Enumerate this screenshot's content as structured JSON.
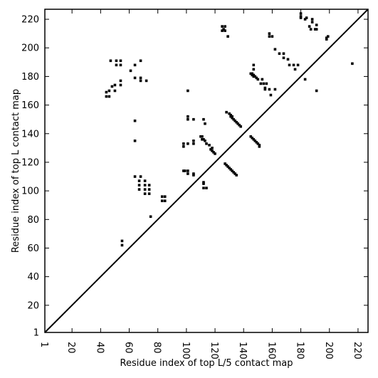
{
  "chart_data": {
    "type": "scatter",
    "title": "",
    "xlabel": "Residue index of top L/5 contact map",
    "ylabel": "Residue index of top L contact map",
    "xlim": [
      1,
      227
    ],
    "ylim": [
      1,
      227
    ],
    "x_ticks": [
      1,
      20,
      40,
      60,
      80,
      100,
      120,
      140,
      160,
      180,
      200,
      220
    ],
    "y_ticks": [
      1,
      20,
      40,
      60,
      80,
      100,
      120,
      140,
      160,
      180,
      200,
      220
    ],
    "x_tick_labels": [
      "1",
      "20",
      "40",
      "60",
      "80",
      "100",
      "120",
      "140",
      "160",
      "180",
      "200",
      "220"
    ],
    "y_tick_labels": [
      "1",
      "20",
      "40",
      "60",
      "80",
      "100",
      "120",
      "140",
      "160",
      "180",
      "200",
      "220"
    ],
    "grid": false,
    "diagonal": true,
    "series": [
      {
        "marker": "square",
        "color": "#000000",
        "points": [
          [
            44,
            166
          ],
          [
            44,
            169
          ],
          [
            46,
            166
          ],
          [
            46,
            170
          ],
          [
            47,
            191
          ],
          [
            48,
            173
          ],
          [
            50,
            170
          ],
          [
            50,
            174
          ],
          [
            51,
            188
          ],
          [
            51,
            191
          ],
          [
            54,
            174
          ],
          [
            54,
            177
          ],
          [
            54,
            188
          ],
          [
            54,
            191
          ],
          [
            55,
            62
          ],
          [
            55,
            65
          ],
          [
            61,
            184
          ],
          [
            64,
            110
          ],
          [
            64,
            135
          ],
          [
            64,
            149
          ],
          [
            64,
            179
          ],
          [
            64,
            188
          ],
          [
            67,
            101
          ],
          [
            67,
            104
          ],
          [
            67,
            107
          ],
          [
            68,
            110
          ],
          [
            68,
            177
          ],
          [
            68,
            179
          ],
          [
            68,
            191
          ],
          [
            71,
            98
          ],
          [
            71,
            101
          ],
          [
            71,
            104
          ],
          [
            71,
            107
          ],
          [
            72,
            177
          ],
          [
            74,
            98
          ],
          [
            74,
            101
          ],
          [
            74,
            104
          ],
          [
            75,
            82
          ],
          [
            83,
            93
          ],
          [
            83,
            96
          ],
          [
            85,
            93
          ],
          [
            85,
            96
          ],
          [
            98,
            114
          ],
          [
            98,
            131
          ],
          [
            98,
            133
          ],
          [
            99,
            114
          ],
          [
            101,
            112
          ],
          [
            101,
            114
          ],
          [
            101,
            133
          ],
          [
            101,
            150
          ],
          [
            101,
            152
          ],
          [
            101,
            170
          ],
          [
            105,
            111
          ],
          [
            105,
            112
          ],
          [
            105,
            133
          ],
          [
            105,
            135
          ],
          [
            105,
            150
          ],
          [
            110,
            138
          ],
          [
            111,
            136
          ],
          [
            111,
            138
          ],
          [
            112,
            102
          ],
          [
            112,
            105
          ],
          [
            112,
            106
          ],
          [
            112,
            136
          ],
          [
            112,
            150
          ],
          [
            113,
            135
          ],
          [
            113,
            147
          ],
          [
            114,
            102
          ],
          [
            114,
            133
          ],
          [
            116,
            132
          ],
          [
            117,
            129
          ],
          [
            118,
            128
          ],
          [
            118,
            130
          ],
          [
            119,
            127
          ],
          [
            120,
            126
          ],
          [
            125,
            212
          ],
          [
            125,
            215
          ],
          [
            126,
            213
          ],
          [
            127,
            119
          ],
          [
            127,
            212
          ],
          [
            127,
            215
          ],
          [
            128,
            118
          ],
          [
            128,
            155
          ],
          [
            129,
            117
          ],
          [
            129,
            208
          ],
          [
            130,
            116
          ],
          [
            130,
            154
          ],
          [
            131,
            115
          ],
          [
            131,
            152
          ],
          [
            131,
            153
          ],
          [
            132,
            151
          ],
          [
            132,
            152
          ],
          [
            132,
            114
          ],
          [
            133,
            113
          ],
          [
            133,
            150
          ],
          [
            134,
            112
          ],
          [
            134,
            149
          ],
          [
            135,
            111
          ],
          [
            135,
            148
          ],
          [
            136,
            147
          ],
          [
            137,
            146
          ],
          [
            138,
            145
          ],
          [
            145,
            138
          ],
          [
            145,
            182
          ],
          [
            146,
            137
          ],
          [
            146,
            181
          ],
          [
            146,
            182
          ],
          [
            147,
            136
          ],
          [
            147,
            180
          ],
          [
            147,
            181
          ],
          [
            147,
            185
          ],
          [
            147,
            188
          ],
          [
            148,
            135
          ],
          [
            148,
            180
          ],
          [
            149,
            134
          ],
          [
            149,
            179
          ],
          [
            150,
            133
          ],
          [
            150,
            178
          ],
          [
            151,
            131
          ],
          [
            151,
            132
          ],
          [
            152,
            175
          ],
          [
            153,
            178
          ],
          [
            154,
            175
          ],
          [
            155,
            171
          ],
          [
            155,
            172
          ],
          [
            156,
            175
          ],
          [
            158,
            171
          ],
          [
            158,
            208
          ],
          [
            158,
            210
          ],
          [
            159,
            167
          ],
          [
            160,
            208
          ],
          [
            162,
            171
          ],
          [
            162,
            199
          ],
          [
            165,
            196
          ],
          [
            168,
            196
          ],
          [
            168,
            193
          ],
          [
            171,
            192
          ],
          [
            172,
            188
          ],
          [
            175,
            188
          ],
          [
            176,
            185
          ],
          [
            178,
            188
          ],
          [
            180,
            221
          ],
          [
            180,
            222
          ],
          [
            180,
            224
          ],
          [
            183,
            178
          ],
          [
            183,
            220
          ],
          [
            184,
            221
          ],
          [
            186,
            215
          ],
          [
            187,
            213
          ],
          [
            188,
            218
          ],
          [
            188,
            220
          ],
          [
            190,
            213
          ],
          [
            191,
            170
          ],
          [
            191,
            216
          ],
          [
            191,
            213
          ],
          [
            198,
            206
          ],
          [
            198,
            207
          ],
          [
            199,
            208
          ],
          [
            216,
            189
          ]
        ]
      }
    ]
  }
}
